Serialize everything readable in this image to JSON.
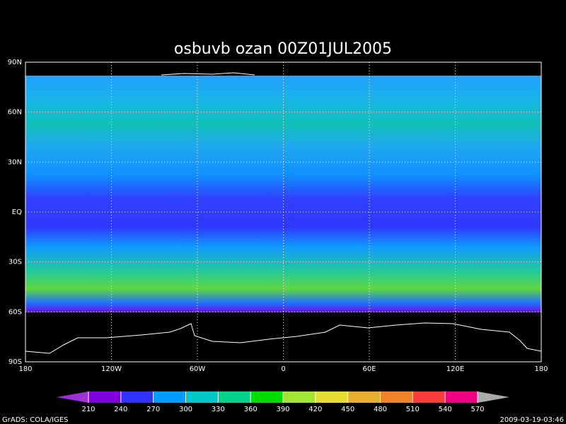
{
  "title": "osbuvb ozan  00Z01JUL2005",
  "map": {
    "lat_labels": [
      "90N",
      "60N",
      "30N",
      "EQ",
      "30S",
      "60S",
      "90S"
    ],
    "lon_labels": [
      "180",
      "120W",
      "60W",
      "0",
      "60E",
      "120E",
      "180"
    ]
  },
  "colorbar": {
    "levels": [
      210,
      240,
      270,
      300,
      330,
      360,
      390,
      420,
      450,
      480,
      510,
      540,
      570
    ],
    "colors": [
      "#a030d8",
      "#8000e0",
      "#3232ff",
      "#009cff",
      "#00c8c8",
      "#00d28c",
      "#00dc00",
      "#a0e632",
      "#e6dc32",
      "#e6af2d",
      "#f08228",
      "#fa3c3c",
      "#f00082",
      "#aaaaaa"
    ]
  },
  "footer": {
    "left": "GrADS: COLA/IGES",
    "right": "2009-03-19-03:46"
  }
}
